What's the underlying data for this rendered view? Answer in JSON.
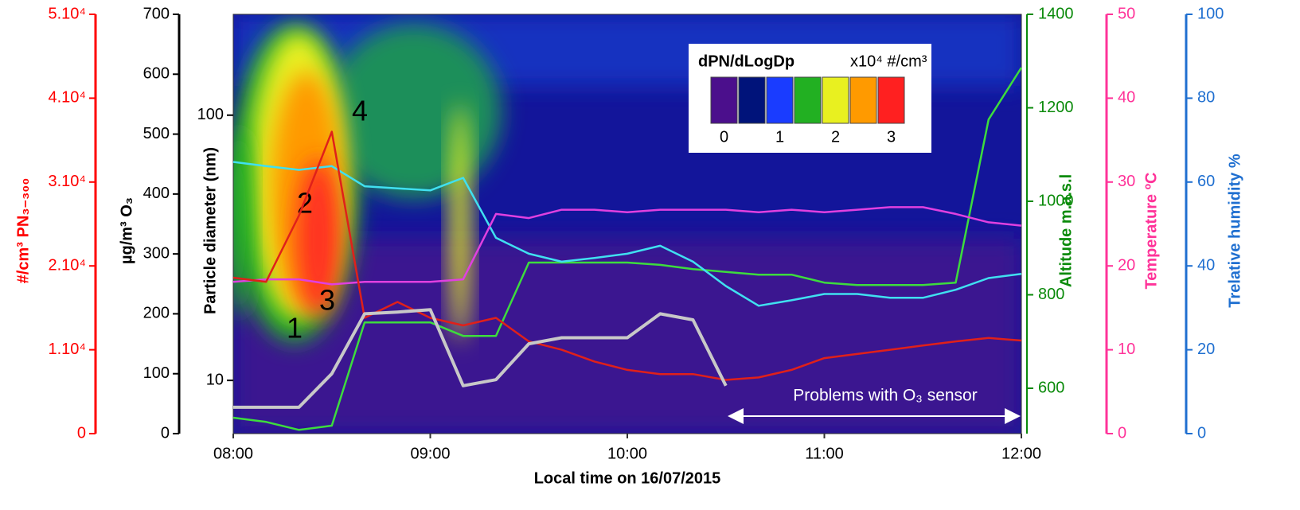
{
  "chart_data": {
    "type": "line",
    "x_label": "Local time on 16/07/2015",
    "x": [
      "08:00",
      "08:10",
      "08:20",
      "08:30",
      "08:40",
      "08:50",
      "09:00",
      "09:10",
      "09:20",
      "09:30",
      "09:40",
      "09:50",
      "10:00",
      "10:10",
      "10:20",
      "10:30",
      "10:40",
      "10:50",
      "11:00",
      "11:10",
      "11:20",
      "11:30",
      "11:40",
      "11:50",
      "12:00"
    ],
    "xlim": [
      "08:00",
      "12:00"
    ],
    "xticks": [
      "08:00",
      "09:00",
      "10:00",
      "11:00",
      "12:00"
    ],
    "axes": {
      "pn": {
        "label": "#/cm³   PN₃₋₃₀₀",
        "color": "#ff0000",
        "lim": [
          0,
          50000
        ],
        "ticks": [
          0,
          {
            "value": 10000,
            "label": "1.10⁴"
          },
          {
            "value": 20000,
            "label": "2.10⁴"
          },
          {
            "value": 30000,
            "label": "3.10⁴"
          },
          {
            "value": 40000,
            "label": "4.10⁴"
          },
          {
            "value": 50000,
            "label": "5.10⁴"
          }
        ]
      },
      "o3": {
        "label": "µg/m³ O₃",
        "color": "#000000",
        "lim": [
          0,
          700
        ],
        "ticks": [
          0,
          100,
          200,
          300,
          400,
          500,
          600,
          700
        ]
      },
      "dp": {
        "label": "Particle diameter  (nm)",
        "color": "#000000",
        "lim": [
          6.3,
          240
        ],
        "log": true,
        "ticks": [
          10,
          100
        ]
      },
      "alt": {
        "label": "Altitude m.a.s.l",
        "color": "#0a8a0a",
        "lim": [
          503,
          1400
        ],
        "ticks": [
          600,
          800,
          1000,
          1200,
          1400
        ]
      },
      "temp": {
        "label": "Temperature ºC",
        "color": "#ff3399",
        "lim": [
          0,
          50
        ],
        "ticks": [
          0,
          10,
          20,
          30,
          40,
          50
        ]
      },
      "rh": {
        "label": "Trelative humidity %",
        "color": "#1f6fd0",
        "lim": [
          0,
          100
        ],
        "ticks": [
          0,
          20,
          40,
          60,
          80,
          100
        ]
      }
    },
    "series": [
      {
        "axis": "alt",
        "color": "#3ddc3d",
        "values": [
          537,
          528,
          511,
          520,
          741,
          741,
          741,
          712,
          712,
          869,
          869,
          869,
          869,
          864,
          855,
          849,
          843,
          843,
          826,
          821,
          821,
          821,
          826,
          1175,
          1286
        ]
      },
      {
        "axis": "rh",
        "color": "#40e0f0",
        "values": [
          64.8,
          63.8,
          62.9,
          63.8,
          59,
          58.5,
          58,
          61,
          46.7,
          42.9,
          41,
          41.9,
          42.9,
          44.8,
          41,
          35.2,
          30.5,
          31.8,
          33.3,
          33.3,
          32.4,
          32.4,
          34.3,
          37.1,
          38.1
        ]
      },
      {
        "axis": "temp",
        "color": "#e040e0",
        "values": [
          18.1,
          18.4,
          18.4,
          17.8,
          18.1,
          18.1,
          18.1,
          18.4,
          26.2,
          25.7,
          26.7,
          26.7,
          26.4,
          26.7,
          26.7,
          26.7,
          26.4,
          26.7,
          26.4,
          26.7,
          27,
          27,
          26.2,
          25.2,
          24.8
        ]
      },
      {
        "axis": "pn",
        "color": "#e0201a",
        "values": [
          18600,
          18100,
          26000,
          36000,
          13800,
          15700,
          13800,
          12900,
          13800,
          11000,
          10000,
          8600,
          7600,
          7100,
          7100,
          6400,
          6700,
          7600,
          9000,
          9500,
          10000,
          10500,
          11000,
          11400,
          11100
        ]
      },
      {
        "axis": "o3",
        "color": "#c8c8c8",
        "values": [
          44,
          44,
          44,
          100,
          200,
          203,
          207,
          80,
          90,
          150,
          160,
          160,
          160,
          200,
          190,
          80,
          null,
          null,
          null,
          null,
          null,
          null,
          null,
          null,
          null
        ]
      }
    ],
    "colorbar": {
      "title": "dPN/dLogDp",
      "unit": "x10⁴ #/cm³",
      "colors": [
        "#4b0f8c",
        "#00137a",
        "#1a3cff",
        "#22b022",
        "#e8f020",
        "#ff9a00",
        "#ff2020"
      ],
      "ticks": [
        0,
        1,
        2,
        3
      ]
    },
    "annotations": [
      "1",
      "2",
      "3",
      "4"
    ],
    "note": "Problems with O₃ sensor"
  }
}
